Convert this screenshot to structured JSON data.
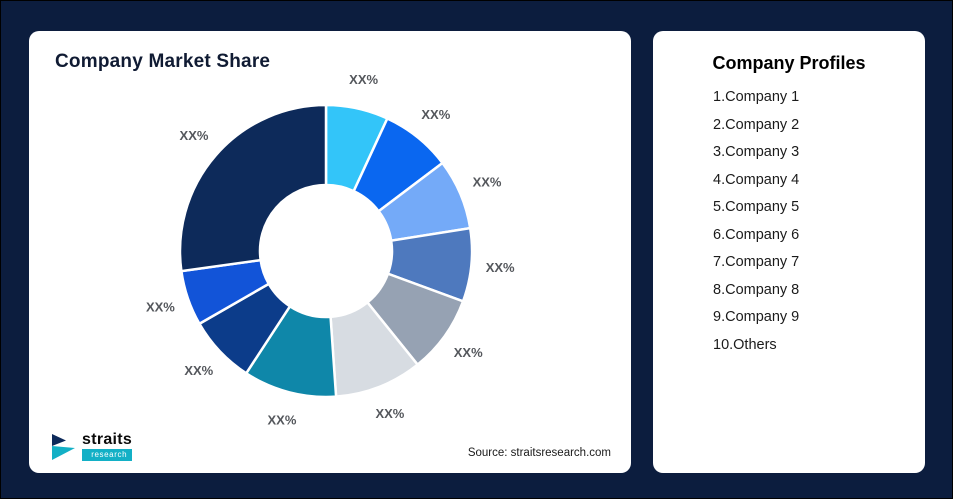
{
  "chart_card": {
    "title": "Company Market Share",
    "source": "Source: straitsresearch.com"
  },
  "logo": {
    "name": "straits",
    "subtitle": "research"
  },
  "profiles": {
    "title": "Company Profiles",
    "items": [
      "1.Company 1",
      "2.Company 2",
      "3.Company 3",
      "4.Company 4",
      "5.Company 5",
      "6.Company 6",
      "7.Company 7",
      "8.Company 8",
      "9.Company 9",
      "10.Others"
    ]
  },
  "chart_data": {
    "type": "pie",
    "subtype": "donut",
    "title": "Company Market Share",
    "source": "Source: straitsresearch.com",
    "legend_position": "none",
    "note": "All slice data labels shown as placeholder XX%; values below estimated from arc angles",
    "segments": [
      {
        "label": "XX%",
        "value": 6.9,
        "color": "#33c5f9"
      },
      {
        "label": "XX%",
        "value": 7.8,
        "color": "#0a67f0"
      },
      {
        "label": "XX%",
        "value": 7.8,
        "color": "#74aaf8"
      },
      {
        "label": "XX%",
        "value": 8.1,
        "color": "#4e79be"
      },
      {
        "label": "XX%",
        "value": 8.6,
        "color": "#96a2b3"
      },
      {
        "label": "XX%",
        "value": 9.7,
        "color": "#d7dce2"
      },
      {
        "label": "XX%",
        "value": 10.3,
        "color": "#0f87a9"
      },
      {
        "label": "XX%",
        "value": 7.5,
        "color": "#0c3c8a"
      },
      {
        "label": "XX%",
        "value": 6.1,
        "color": "#1254d8"
      },
      {
        "label": "XX%",
        "value": 27.2,
        "color": "#0d2a5a"
      }
    ]
  }
}
